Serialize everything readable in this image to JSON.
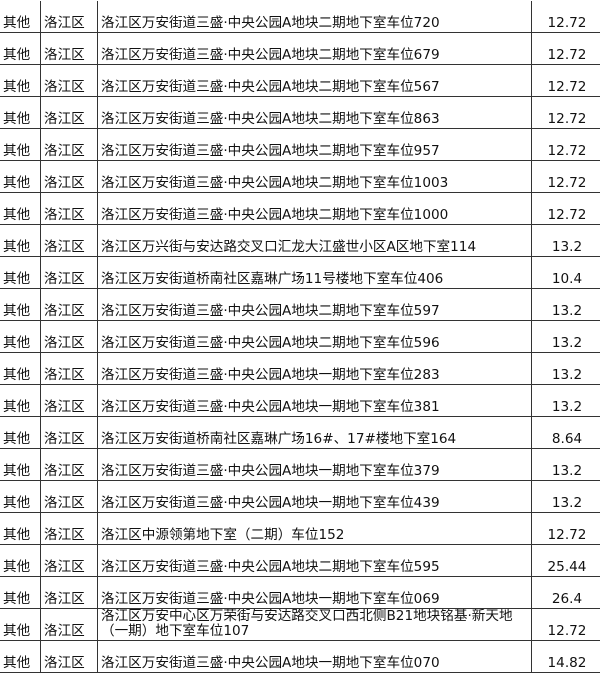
{
  "rows": [
    {
      "type": "其他",
      "district": "洛江区",
      "location": "洛江区万安街道三盛·中央公园A地块二期地下室车位720",
      "area": "12.72"
    },
    {
      "type": "其他",
      "district": "洛江区",
      "location": "洛江区万安街道三盛·中央公园A地块二期地下室车位679",
      "area": "12.72"
    },
    {
      "type": "其他",
      "district": "洛江区",
      "location": "洛江区万安街道三盛·中央公园A地块二期地下室车位567",
      "area": "12.72"
    },
    {
      "type": "其他",
      "district": "洛江区",
      "location": "洛江区万安街道三盛·中央公园A地块二期地下室车位863",
      "area": "12.72"
    },
    {
      "type": "其他",
      "district": "洛江区",
      "location": "洛江区万安街道三盛·中央公园A地块二期地下室车位957",
      "area": "12.72"
    },
    {
      "type": "其他",
      "district": "洛江区",
      "location": "洛江区万安街道三盛·中央公园A地块二期地下室车位1003",
      "area": "12.72"
    },
    {
      "type": "其他",
      "district": "洛江区",
      "location": "洛江区万安街道三盛·中央公园A地块二期地下室车位1000",
      "area": "12.72"
    },
    {
      "type": "其他",
      "district": "洛江区",
      "location": "洛江区万兴街与安达路交叉口汇龙大江盛世小区A区地下室114",
      "area": "13.2"
    },
    {
      "type": "其他",
      "district": "洛江区",
      "location": "洛江区万安街道桥南社区嘉琳广场11号楼地下室车位406",
      "area": "10.4"
    },
    {
      "type": "其他",
      "district": "洛江区",
      "location": "洛江区万安街道三盛·中央公园A地块二期地下室车位597",
      "area": "13.2"
    },
    {
      "type": "其他",
      "district": "洛江区",
      "location": "洛江区万安街道三盛·中央公园A地块二期地下室车位596",
      "area": "13.2"
    },
    {
      "type": "其他",
      "district": "洛江区",
      "location": "洛江区万安街道三盛·中央公园A地块一期地下室车位283",
      "area": "13.2"
    },
    {
      "type": "其他",
      "district": "洛江区",
      "location": "洛江区万安街道三盛·中央公园A地块一期地下室车位381",
      "area": "13.2"
    },
    {
      "type": "其他",
      "district": "洛江区",
      "location": "洛江区万安街道桥南社区嘉琳广场16#、17#楼地下室164",
      "area": "8.64"
    },
    {
      "type": "其他",
      "district": "洛江区",
      "location": "洛江区万安街道三盛·中央公园A地块一期地下室车位379",
      "area": "13.2"
    },
    {
      "type": "其他",
      "district": "洛江区",
      "location": "洛江区万安街道三盛·中央公园A地块一期地下室车位439",
      "area": "13.2"
    },
    {
      "type": "其他",
      "district": "洛江区",
      "location": "洛江区中源领第地下室（二期）车位152",
      "area": "12.72"
    },
    {
      "type": "其他",
      "district": "洛江区",
      "location": "洛江区万安街道三盛·中央公园A地块二期地下室车位595",
      "area": "25.44"
    },
    {
      "type": "其他",
      "district": "洛江区",
      "location": "洛江区万安街道三盛·中央公园A地块一期地下室车位069",
      "area": "26.4"
    },
    {
      "type": "其他",
      "district": "洛江区",
      "location": "洛江区万安中心区万荣街与安达路交叉口西北侧B21地块铭基·新天地（一期）地下室车位107",
      "area": "12.72"
    },
    {
      "type": "其他",
      "district": "洛江区",
      "location": "洛江区万安街道三盛·中央公园A地块一期地下室车位070",
      "area": "14.82"
    }
  ]
}
